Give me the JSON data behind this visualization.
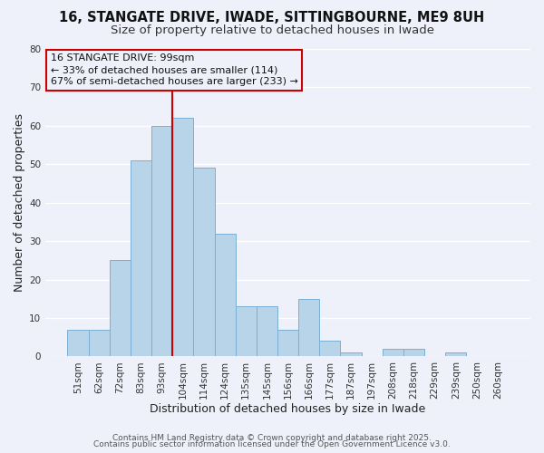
{
  "title": "16, STANGATE DRIVE, IWADE, SITTINGBOURNE, ME9 8UH",
  "subtitle": "Size of property relative to detached houses in Iwade",
  "xlabel": "Distribution of detached houses by size in Iwade",
  "ylabel": "Number of detached properties",
  "categories": [
    "51sqm",
    "62sqm",
    "72sqm",
    "83sqm",
    "93sqm",
    "104sqm",
    "114sqm",
    "124sqm",
    "135sqm",
    "145sqm",
    "156sqm",
    "166sqm",
    "177sqm",
    "187sqm",
    "197sqm",
    "208sqm",
    "218sqm",
    "229sqm",
    "239sqm",
    "250sqm",
    "260sqm"
  ],
  "values": [
    7,
    7,
    25,
    51,
    60,
    62,
    49,
    32,
    13,
    13,
    7,
    15,
    4,
    1,
    0,
    2,
    2,
    0,
    1,
    0,
    0
  ],
  "bar_color": "#b8d4e8",
  "bar_edge_color": "#7bafd4",
  "vline_color": "#cc0000",
  "vline_position": 4.5,
  "ylim": [
    0,
    80
  ],
  "yticks": [
    0,
    10,
    20,
    30,
    40,
    50,
    60,
    70,
    80
  ],
  "annotation_line1": "16 STANGATE DRIVE: 99sqm",
  "annotation_line2": "← 33% of detached houses are smaller (114)",
  "annotation_line3": "67% of semi-detached houses are larger (233) →",
  "footer1": "Contains HM Land Registry data © Crown copyright and database right 2025.",
  "footer2": "Contains public sector information licensed under the Open Government Licence v3.0.",
  "background_color": "#eef1fa",
  "plot_bg_color": "#eef1fa",
  "grid_color": "#ffffff",
  "title_fontsize": 10.5,
  "subtitle_fontsize": 9.5,
  "axis_label_fontsize": 9,
  "tick_fontsize": 7.5,
  "annotation_fontsize": 8,
  "footer_fontsize": 6.5
}
